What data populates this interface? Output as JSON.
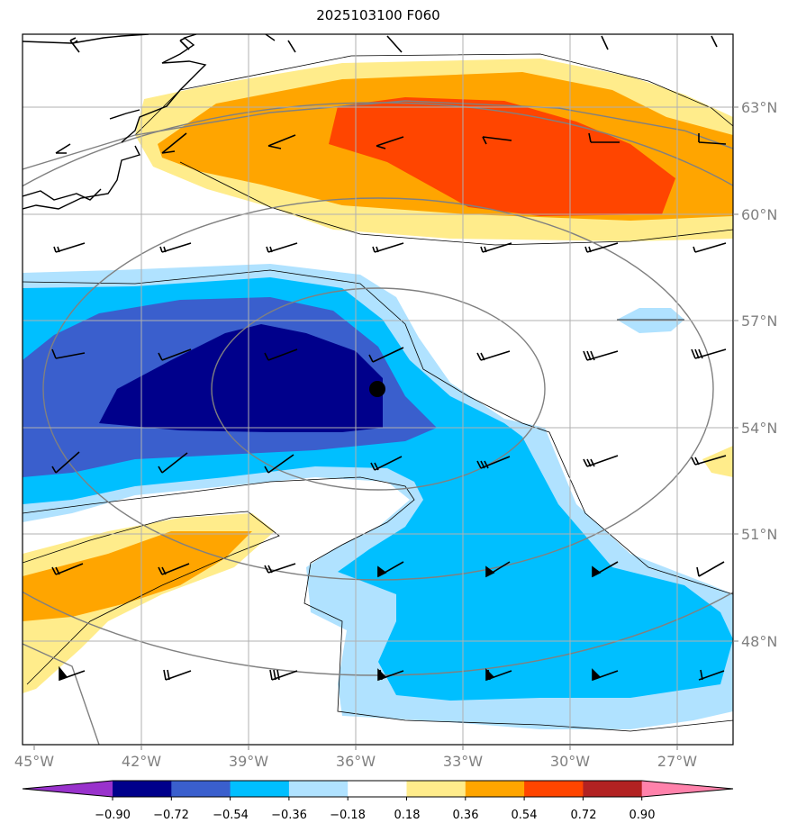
{
  "title": "2025103100 F060",
  "map": {
    "lon_labels": [
      "45°W",
      "42°W",
      "39°W",
      "36°W",
      "33°W",
      "30°W",
      "27°W"
    ],
    "lat_labels": [
      "63°N",
      "60°N",
      "57°N",
      "54°N",
      "51°N",
      "48°N"
    ],
    "marker": "filled black dot",
    "overlays": [
      "coastline",
      "lat/lon gridlines",
      "grey range rings",
      "thin black contour lines",
      "wind barbs"
    ]
  },
  "colorbar": {
    "labels": [
      "−0.90",
      "−0.72",
      "−0.54",
      "−0.36",
      "−0.18",
      "0.18",
      "0.36",
      "0.54",
      "0.72",
      "0.90"
    ],
    "colors": [
      "#9932cc",
      "#00008b",
      "#3a5fcd",
      "#00bfff",
      "#b0e2ff",
      "#ffffff",
      "#ffec8b",
      "#ffa500",
      "#ff4500",
      "#b22222",
      "#ff82ab"
    ]
  }
}
